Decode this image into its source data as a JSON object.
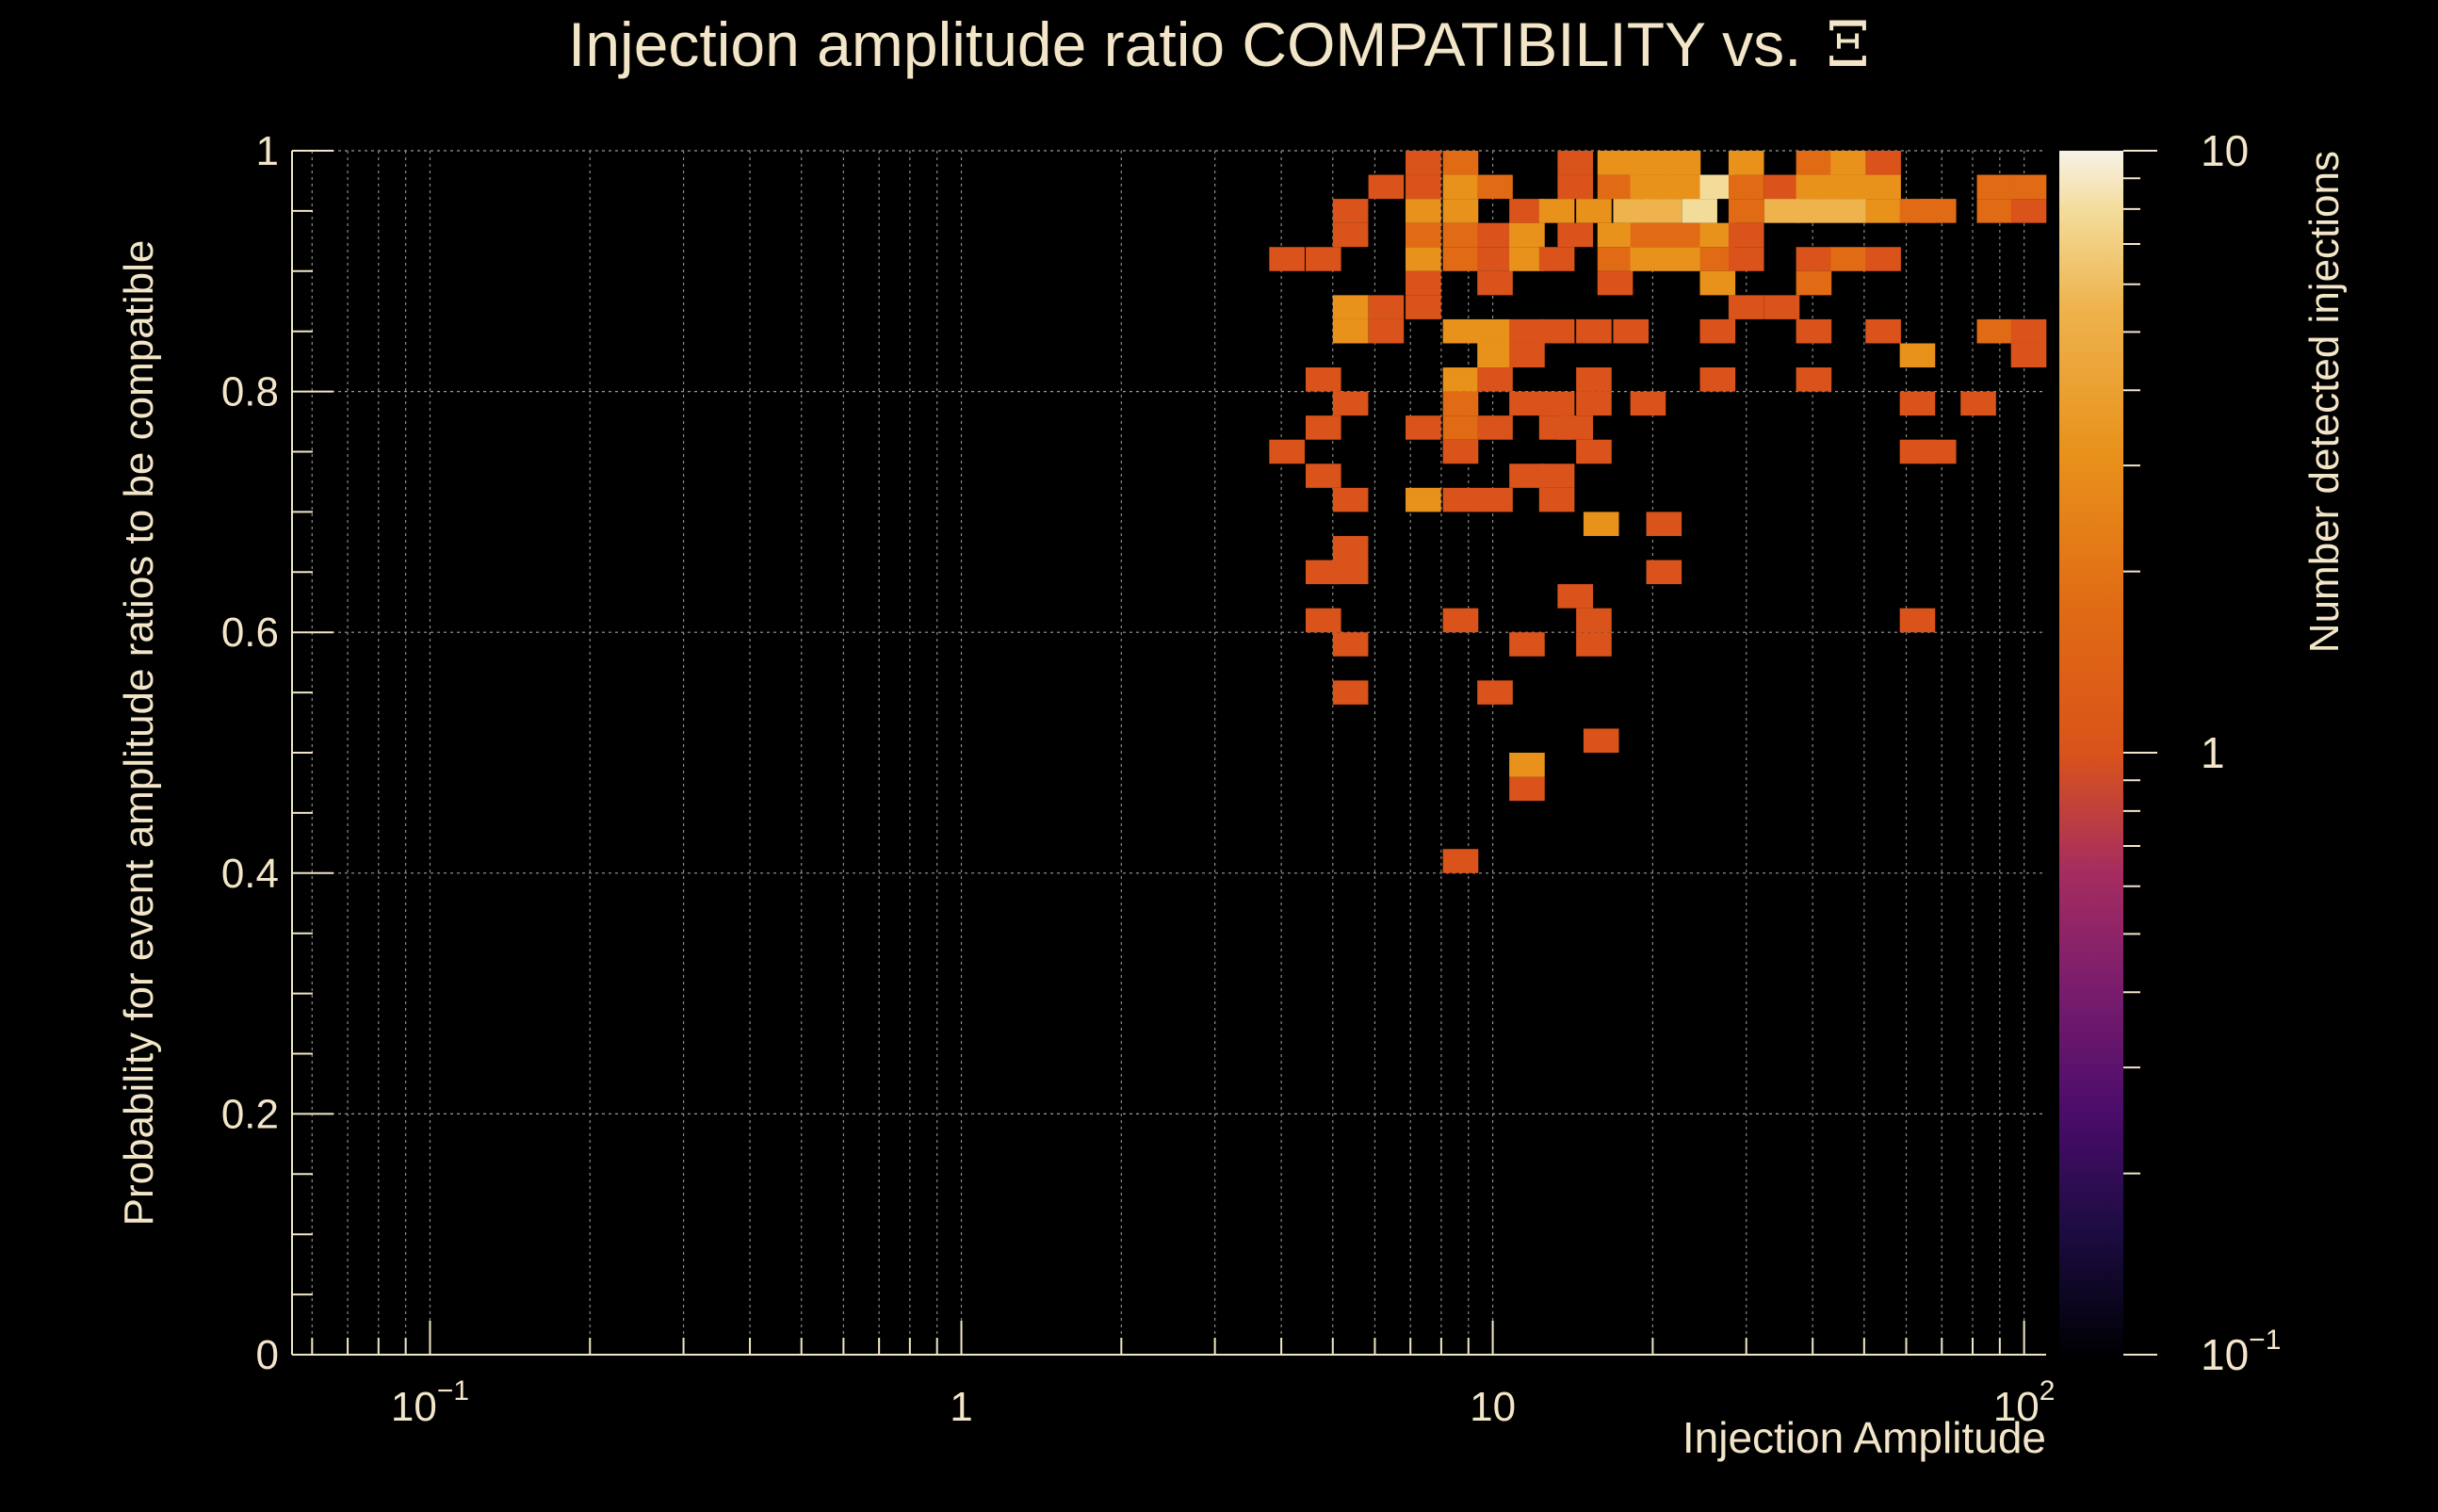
{
  "page": {
    "background": "#000000",
    "foreground": "#f3e6c8"
  },
  "chart_data": {
    "type": "heatmap",
    "title": "Injection amplitude ratio COMPATIBILITY vs.",
    "title_symbol": "Ξ",
    "xlabel": "Injection Amplitude",
    "ylabel": "Probability for event amplitude ratios to be compatible",
    "zlabel": "Number detected injections",
    "x_scale": "log",
    "xlim": [
      0.055,
      110
    ],
    "ylim": [
      0,
      1
    ],
    "zlim": [
      0.1,
      10
    ],
    "z_scale": "log",
    "grid": true,
    "x_ticks": [
      {
        "value": 0.1,
        "base": "10",
        "exp": "−1"
      },
      {
        "value": 1,
        "label": "1"
      },
      {
        "value": 10,
        "label": "10"
      },
      {
        "value": 100,
        "base": "10",
        "exp": "2"
      }
    ],
    "y_ticks": [
      {
        "value": 0,
        "label": "0"
      },
      {
        "value": 0.2,
        "label": "0.2"
      },
      {
        "value": 0.4,
        "label": "0.4"
      },
      {
        "value": 0.6,
        "label": "0.6"
      },
      {
        "value": 0.8,
        "label": "0.8"
      },
      {
        "value": 1,
        "label": "1"
      }
    ],
    "z_ticks": [
      {
        "value": 0.1,
        "base": "10",
        "exp": "−1"
      },
      {
        "value": 1,
        "label": "1"
      },
      {
        "value": 10,
        "label": "10"
      }
    ],
    "colormap": [
      "#000004",
      "#1b0c41",
      "#4a0c6b",
      "#781c6d",
      "#a52c60",
      "#cf4446",
      "#d9531a",
      "#e06b14",
      "#e8921c",
      "#eeb34d",
      "#f3dc9a",
      "#f7f2e8"
    ],
    "bins": [
      [
        7.4,
        1
      ],
      [
        8.7,
        2
      ],
      [
        14.3,
        1
      ],
      [
        17,
        3
      ],
      [
        19.6,
        3
      ],
      [
        22.8,
        3
      ],
      [
        30,
        3
      ],
      [
        40.2,
        2
      ],
      [
        46.7,
        3
      ],
      [
        54.3,
        1
      ],
      [
        6.3,
        1
      ],
      [
        7.4,
        1
      ],
      [
        8.7,
        3
      ],
      [
        10.1,
        2
      ],
      [
        14.3,
        1
      ],
      [
        17,
        2
      ],
      [
        19.6,
        3
      ],
      [
        22.8,
        3
      ],
      [
        26.5,
        5
      ],
      [
        30,
        2
      ],
      [
        35,
        1
      ],
      [
        40.2,
        3
      ],
      [
        46.7,
        3
      ],
      [
        54.3,
        3
      ],
      [
        88,
        2
      ],
      [
        102,
        2
      ],
      [
        5.4,
        1
      ],
      [
        7.4,
        3
      ],
      [
        8.7,
        3
      ],
      [
        11.6,
        1
      ],
      [
        13.2,
        3
      ],
      [
        15.5,
        3
      ],
      [
        18.2,
        4
      ],
      [
        21,
        4
      ],
      [
        24.5,
        5
      ],
      [
        30,
        2
      ],
      [
        35,
        4
      ],
      [
        40.2,
        4
      ],
      [
        46.7,
        4
      ],
      [
        54.3,
        3
      ],
      [
        63,
        2
      ],
      [
        69,
        2
      ],
      [
        88,
        2
      ],
      [
        102,
        1
      ],
      [
        5.4,
        1
      ],
      [
        7.4,
        2
      ],
      [
        8.7,
        2
      ],
      [
        10.1,
        1
      ],
      [
        11.6,
        3
      ],
      [
        14.3,
        1
      ],
      [
        17,
        3
      ],
      [
        19.6,
        2
      ],
      [
        22.8,
        2
      ],
      [
        26.5,
        3
      ],
      [
        30,
        1
      ],
      [
        4.1,
        1
      ],
      [
        4.8,
        1
      ],
      [
        7.4,
        3
      ],
      [
        8.7,
        2
      ],
      [
        10.1,
        1
      ],
      [
        11.6,
        3
      ],
      [
        13.2,
        1
      ],
      [
        17,
        2
      ],
      [
        19.6,
        3
      ],
      [
        22.8,
        3
      ],
      [
        26.5,
        2
      ],
      [
        30,
        1
      ],
      [
        40.2,
        1
      ],
      [
        46.7,
        2
      ],
      [
        54.3,
        1
      ],
      [
        7.4,
        1
      ],
      [
        10.1,
        1
      ],
      [
        17,
        1
      ],
      [
        26.5,
        3
      ],
      [
        40.2,
        2
      ],
      [
        5.4,
        3
      ],
      [
        6.3,
        1
      ],
      [
        7.4,
        1
      ],
      [
        30,
        1
      ],
      [
        35,
        1
      ],
      [
        5.4,
        3
      ],
      [
        6.3,
        1
      ],
      [
        8.7,
        3
      ],
      [
        10.1,
        3
      ],
      [
        11.6,
        1
      ],
      [
        13.2,
        1
      ],
      [
        15.5,
        1
      ],
      [
        18.2,
        1
      ],
      [
        26.5,
        1
      ],
      [
        40.2,
        1
      ],
      [
        54.3,
        1
      ],
      [
        88,
        2
      ],
      [
        102,
        1
      ],
      [
        10.1,
        3
      ],
      [
        11.6,
        1
      ],
      [
        63,
        3
      ],
      [
        102,
        1
      ],
      [
        4.8,
        1
      ],
      [
        8.7,
        3
      ],
      [
        10.1,
        1
      ],
      [
        15.5,
        1
      ],
      [
        26.5,
        1
      ],
      [
        40.2,
        1
      ],
      [
        5.4,
        1
      ],
      [
        8.7,
        2
      ],
      [
        11.6,
        1
      ],
      [
        13.2,
        1
      ],
      [
        15.5,
        1
      ],
      [
        19.6,
        1
      ],
      [
        63,
        1
      ],
      [
        82,
        1
      ],
      [
        4.8,
        1
      ],
      [
        7.4,
        1
      ],
      [
        8.7,
        2
      ],
      [
        10.1,
        1
      ],
      [
        13.2,
        1
      ],
      [
        14.3,
        1
      ],
      [
        4.1,
        1
      ],
      [
        8.7,
        1
      ],
      [
        15.5,
        1
      ],
      [
        63,
        1
      ],
      [
        69,
        1
      ],
      [
        4.8,
        1
      ],
      [
        11.6,
        1
      ],
      [
        13.2,
        1
      ],
      [
        5.4,
        1
      ],
      [
        7.4,
        3
      ],
      [
        8.7,
        1
      ],
      [
        10.1,
        1
      ],
      [
        13.2,
        1
      ],
      [
        16,
        3
      ],
      [
        21,
        1
      ],
      [
        5.4,
        1
      ],
      [
        4.8,
        1
      ],
      [
        5.4,
        1
      ],
      [
        21,
        1
      ],
      [
        14.3,
        1
      ],
      [
        4.8,
        1
      ],
      [
        8.7,
        1
      ],
      [
        15.5,
        1
      ],
      [
        63,
        1
      ],
      [
        5.4,
        1
      ],
      [
        11.6,
        1
      ],
      [
        15.5,
        1
      ],
      [
        5.4,
        1
      ],
      [
        10.1,
        1
      ],
      [
        16,
        1
      ],
      [
        11.6,
        3
      ],
      [
        11.6,
        1
      ],
      [
        8.7,
        1
      ]
    ],
    "bin_rows": [
      0.99,
      0.99,
      0.99,
      0.99,
      0.99,
      0.99,
      0.99,
      0.99,
      0.99,
      0.99,
      0.97,
      0.97,
      0.97,
      0.97,
      0.97,
      0.97,
      0.97,
      0.97,
      0.97,
      0.97,
      0.97,
      0.97,
      0.97,
      0.97,
      0.97,
      0.97,
      0.95,
      0.95,
      0.95,
      0.95,
      0.95,
      0.95,
      0.95,
      0.95,
      0.95,
      0.95,
      0.95,
      0.95,
      0.95,
      0.95,
      0.95,
      0.95,
      0.95,
      0.95,
      0.93,
      0.93,
      0.93,
      0.93,
      0.93,
      0.93,
      0.93,
      0.93,
      0.93,
      0.93,
      0.93,
      0.91,
      0.91,
      0.91,
      0.91,
      0.91,
      0.91,
      0.91,
      0.91,
      0.91,
      0.91,
      0.91,
      0.91,
      0.91,
      0.91,
      0.91,
      0.89,
      0.89,
      0.89,
      0.89,
      0.89,
      0.87,
      0.87,
      0.87,
      0.87,
      0.87,
      0.85,
      0.85,
      0.85,
      0.85,
      0.85,
      0.85,
      0.85,
      0.85,
      0.85,
      0.85,
      0.85,
      0.85,
      0.85,
      0.83,
      0.83,
      0.83,
      0.83,
      0.81,
      0.81,
      0.81,
      0.81,
      0.81,
      0.81,
      0.79,
      0.79,
      0.79,
      0.79,
      0.79,
      0.79,
      0.79,
      0.79,
      0.77,
      0.77,
      0.77,
      0.77,
      0.77,
      0.77,
      0.75,
      0.75,
      0.75,
      0.75,
      0.75,
      0.73,
      0.73,
      0.73,
      0.71,
      0.71,
      0.71,
      0.71,
      0.71,
      0.69,
      0.69,
      0.67,
      0.65,
      0.65,
      0.65,
      0.63,
      0.61,
      0.61,
      0.61,
      0.61,
      0.59,
      0.59,
      0.59,
      0.55,
      0.55,
      0.51,
      0.49,
      0.47,
      0.41
    ]
  }
}
